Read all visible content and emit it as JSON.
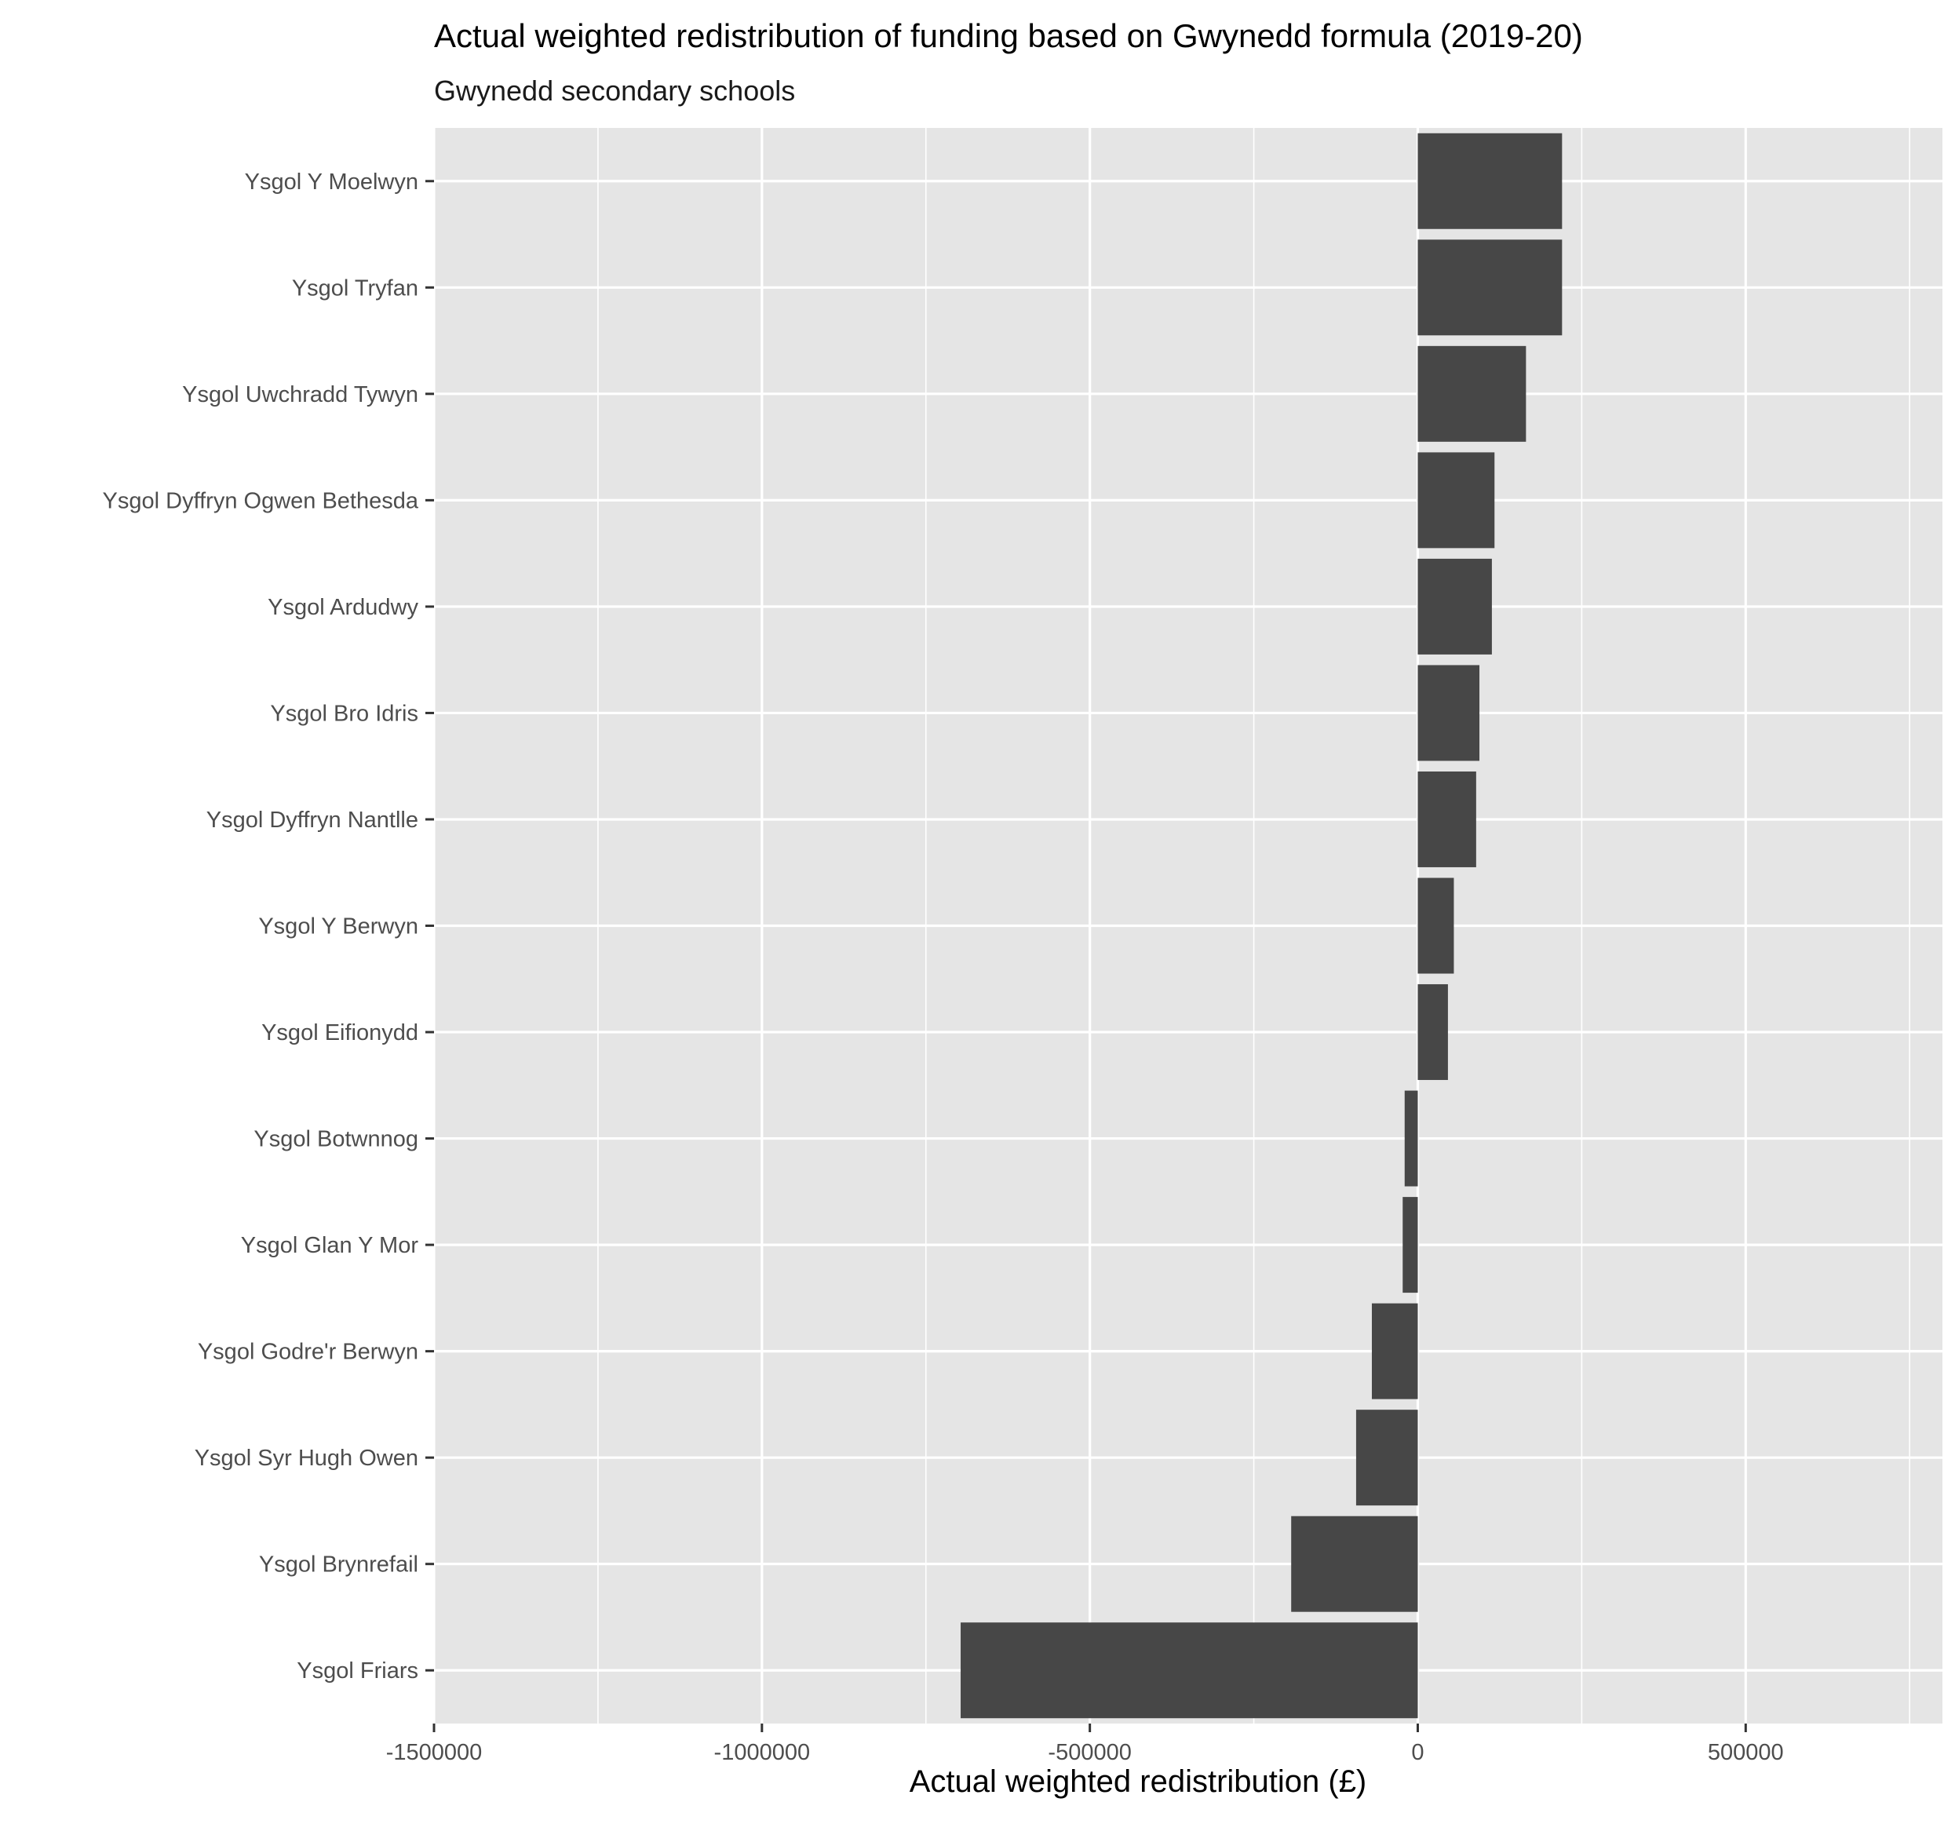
{
  "chart_data": {
    "type": "bar",
    "orientation": "horizontal",
    "title": "Actual weighted redistribution of funding based on Gwynedd formula (2019-20)",
    "subtitle": "Gwynedd secondary schools",
    "xlabel": "Actual weighted redistribution (£)",
    "ylabel": "",
    "xlim": [
      -1500000,
      800000
    ],
    "x_ticks": [
      -1500000,
      -1000000,
      -500000,
      0,
      500000
    ],
    "x_tick_labels": [
      "-1500000",
      "-1000000",
      "-500000",
      "0",
      "500000"
    ],
    "x_minor_ticks": [
      -1250000,
      -750000,
      -250000,
      250000,
      750000
    ],
    "grid": true,
    "legend": "none",
    "categories": [
      "Ysgol Y Moelwyn",
      "Ysgol Tryfan",
      "Ysgol Uwchradd Tywyn",
      "Ysgol Dyffryn Ogwen Bethesda",
      "Ysgol Ardudwy",
      "Ysgol Bro Idris",
      "Ysgol Dyffryn Nantlle",
      "Ysgol Y Berwyn",
      "Ysgol Eifionydd",
      "Ysgol Botwnnog",
      "Ysgol Glan Y Mor",
      "Ysgol Godre'r Berwyn",
      "Ysgol Syr Hugh Owen",
      "Ysgol Brynrefail",
      "Ysgol Friars"
    ],
    "values": [
      220000,
      220000,
      165000,
      117000,
      113000,
      94000,
      89000,
      55000,
      46000,
      -20000,
      -23000,
      -70000,
      -94000,
      -193000,
      -697000
    ],
    "colors": {
      "panel": "#e5e5e5",
      "grid": "#ffffff",
      "bar": "#474747",
      "tick": "#333333"
    }
  }
}
